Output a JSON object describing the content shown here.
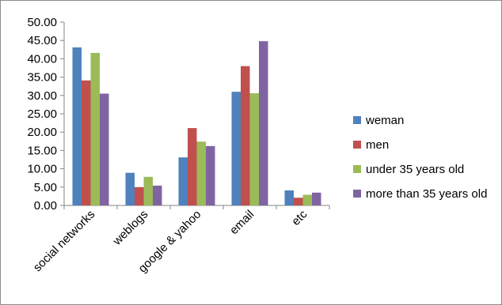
{
  "chart_data": {
    "type": "bar",
    "title": "",
    "xlabel": "",
    "ylabel": "",
    "categories": [
      "social networks",
      "weblogs",
      "google & yahoo",
      "email",
      "etc"
    ],
    "series": [
      {
        "name": "weman",
        "color": "#4f81bd",
        "values": [
          43.1,
          8.9,
          13.1,
          31.0,
          4.1
        ]
      },
      {
        "name": "men",
        "color": "#c0504d",
        "values": [
          34.1,
          5.0,
          21.1,
          38.0,
          2.1
        ]
      },
      {
        "name": "under 35 years old",
        "color": "#9bbb59",
        "values": [
          41.6,
          7.8,
          17.4,
          30.6,
          2.9
        ]
      },
      {
        "name": "more than 35 years old",
        "color": "#8064a2",
        "values": [
          30.5,
          5.4,
          16.2,
          44.8,
          3.5
        ]
      }
    ],
    "ylim": [
      0,
      50
    ],
    "yticks": [
      "0.00",
      "5.00",
      "10.00",
      "15.00",
      "20.00",
      "25.00",
      "30.00",
      "35.00",
      "40.00",
      "45.00",
      "50.00"
    ],
    "grid": false,
    "legend_position": "right"
  }
}
